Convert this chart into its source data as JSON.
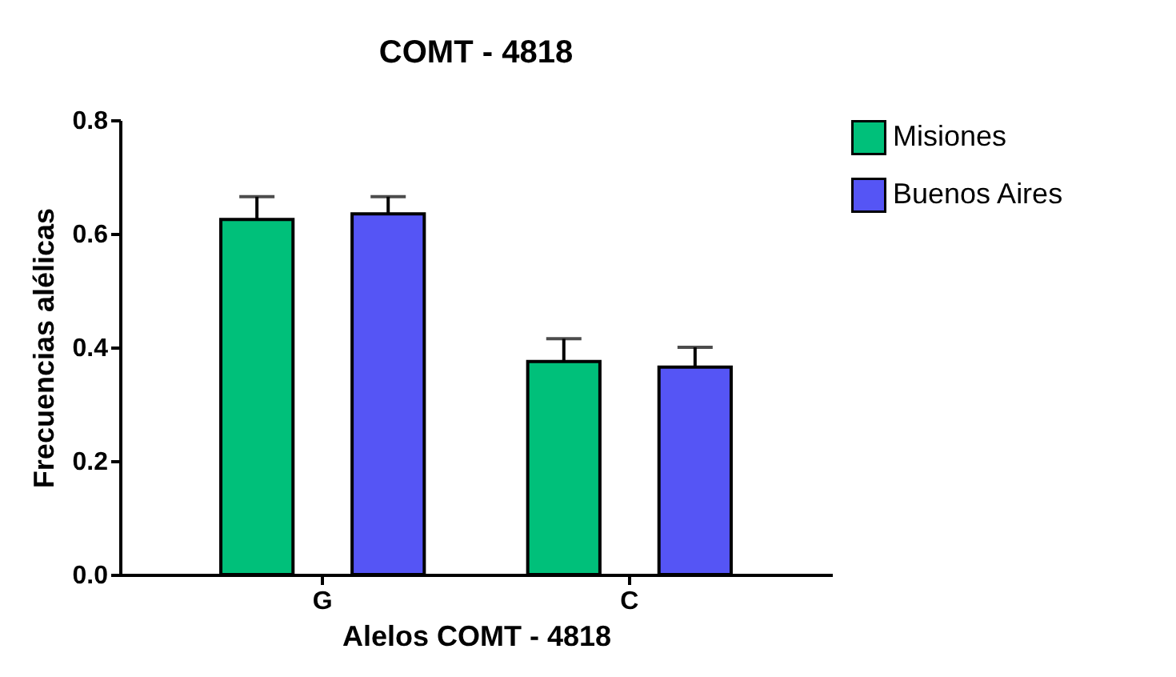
{
  "chart_data": {
    "type": "bar",
    "title": "COMT - 4818",
    "xlabel": "Alelos COMT - 4818",
    "ylabel": "Frecuencias alélicas",
    "categories": [
      "G",
      "C"
    ],
    "series": [
      {
        "name": "Misiones",
        "color": "#00c07a",
        "values": [
          0.625,
          0.375
        ],
        "errors": [
          0.04,
          0.04
        ]
      },
      {
        "name": "Buenos Aires",
        "color": "#5555f5",
        "values": [
          0.635,
          0.365
        ],
        "errors": [
          0.03,
          0.035
        ]
      }
    ],
    "ylim": [
      0,
      0.8
    ],
    "yticks": [
      {
        "value": 0,
        "label": "0.0"
      },
      {
        "value": 0.2,
        "label": "0.2"
      },
      {
        "value": 0.4,
        "label": "0.4"
      },
      {
        "value": 0.6,
        "label": "0.6"
      },
      {
        "value": 0.8,
        "label": "0.8"
      }
    ],
    "grid": false,
    "legend": "top right"
  }
}
